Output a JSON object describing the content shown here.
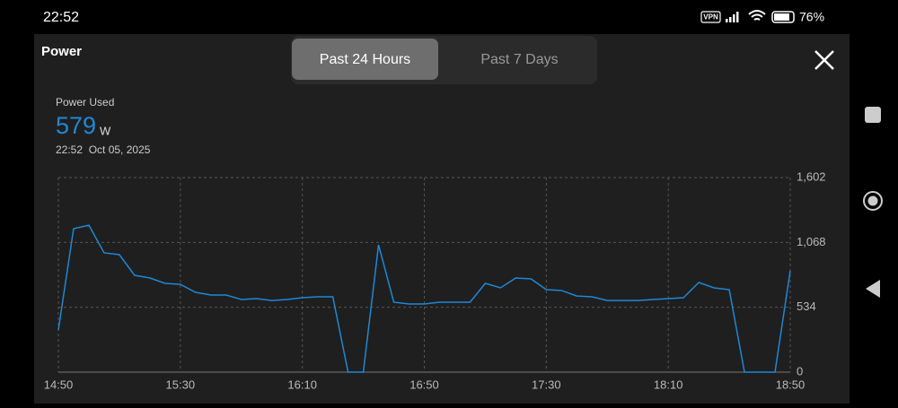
{
  "status_bar": {
    "time": "22:52",
    "vpn": "VPN",
    "battery": "76%"
  },
  "panel": {
    "title": "Power",
    "tabs": [
      "Past 24 Hours",
      "Past 7 Days"
    ],
    "active_tab": 0
  },
  "metric": {
    "label": "Power Used",
    "value": 579,
    "unit": "W",
    "timestamp": "22:52  Oct 05, 2025"
  },
  "chart_data": {
    "type": "line",
    "color": "#1e88d6",
    "grid": true,
    "categories": [
      "14:50",
      null,
      null,
      null,
      null,
      null,
      null,
      null,
      "15:30",
      null,
      null,
      null,
      null,
      null,
      null,
      null,
      "16:10",
      null,
      null,
      null,
      null,
      null,
      null,
      null,
      "16:50",
      null,
      null,
      null,
      null,
      null,
      null,
      null,
      "17:30",
      null,
      null,
      null,
      null,
      null,
      null,
      null,
      "18:10",
      null,
      null,
      null,
      null,
      null,
      null,
      null,
      "18:50"
    ],
    "values": [
      347,
      1181,
      1210,
      982,
      967,
      797,
      775,
      731,
      723,
      657,
      635,
      635,
      598,
      605,
      590,
      598,
      613,
      620,
      620,
      0,
      0,
      1048,
      576,
      561,
      561,
      576,
      576,
      576,
      731,
      694,
      775,
      768,
      679,
      672,
      627,
      620,
      590,
      590,
      590,
      598,
      605,
      613,
      738,
      694,
      679,
      0,
      0,
      0,
      834
    ],
    "ylim": [
      0,
      1602
    ],
    "yticks": [
      0,
      534,
      {
        "value": 1068,
        "label": "1,068"
      },
      {
        "value": 1602,
        "label": "1,602"
      }
    ]
  }
}
